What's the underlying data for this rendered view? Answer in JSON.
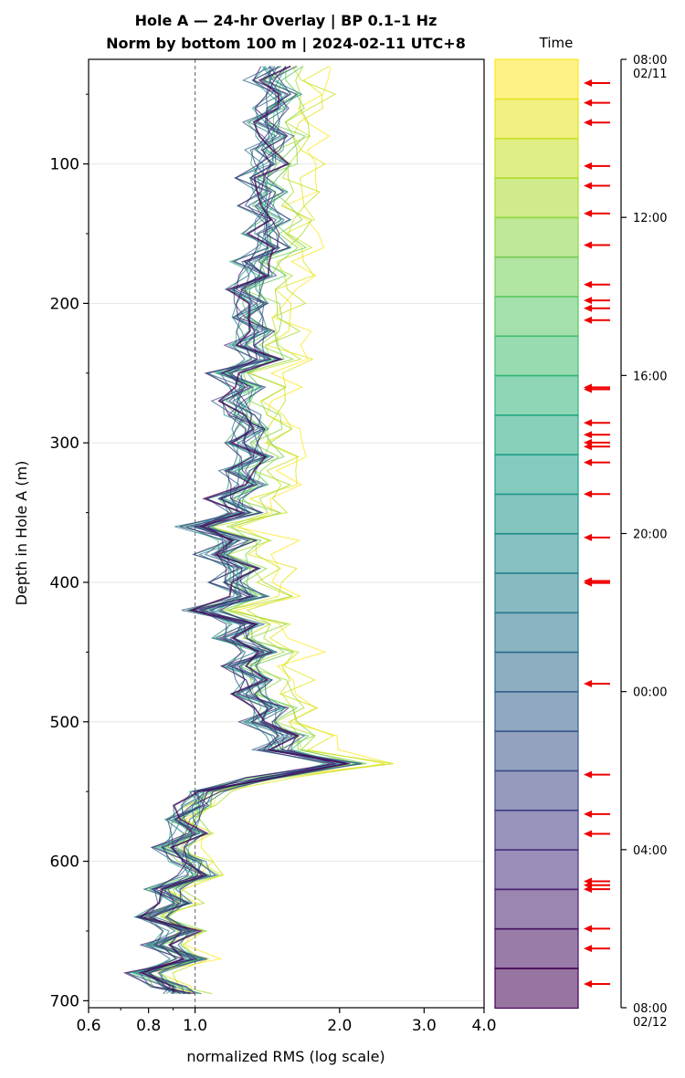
{
  "chart_data": {
    "type": "line",
    "title": "Hole A — 24-hr Overlay  |  BP 0.1–1 Hz",
    "subtitle": "Norm by bottom 100 m  |  2024-02-11 UTC+8",
    "xlabel": "normalized RMS  (log scale)",
    "ylabel": "Depth in Hole A (m)",
    "x_scale": "log",
    "xlim": [
      0.6,
      4.0
    ],
    "ylim": [
      705,
      25
    ],
    "x_ticks": [
      "0.6",
      "0.8",
      "1.0",
      "2.0",
      "3.0",
      "4.0"
    ],
    "y_ticks": [
      "100",
      "200",
      "300",
      "400",
      "500",
      "600",
      "700"
    ],
    "reference_line_x": 1.0,
    "grid": true,
    "depth_profile": [
      [
        30,
        1.48
      ],
      [
        40,
        1.4
      ],
      [
        50,
        1.52
      ],
      [
        60,
        1.45
      ],
      [
        70,
        1.38
      ],
      [
        80,
        1.47
      ],
      [
        90,
        1.4
      ],
      [
        100,
        1.43
      ],
      [
        110,
        1.33
      ],
      [
        120,
        1.42
      ],
      [
        130,
        1.36
      ],
      [
        140,
        1.44
      ],
      [
        150,
        1.38
      ],
      [
        160,
        1.46
      ],
      [
        170,
        1.3
      ],
      [
        180,
        1.37
      ],
      [
        190,
        1.25
      ],
      [
        200,
        1.33
      ],
      [
        210,
        1.27
      ],
      [
        220,
        1.35
      ],
      [
        230,
        1.26
      ],
      [
        240,
        1.4
      ],
      [
        250,
        1.15
      ],
      [
        260,
        1.28
      ],
      [
        270,
        1.2
      ],
      [
        280,
        1.25
      ],
      [
        290,
        1.32
      ],
      [
        300,
        1.24
      ],
      [
        310,
        1.35
      ],
      [
        320,
        1.22
      ],
      [
        330,
        1.3
      ],
      [
        340,
        1.15
      ],
      [
        350,
        1.27
      ],
      [
        360,
        1.0
      ],
      [
        370,
        1.22
      ],
      [
        380,
        1.1
      ],
      [
        390,
        1.25
      ],
      [
        400,
        1.17
      ],
      [
        410,
        1.3
      ],
      [
        420,
        1.03
      ],
      [
        430,
        1.28
      ],
      [
        440,
        1.18
      ],
      [
        450,
        1.38
      ],
      [
        460,
        1.22
      ],
      [
        470,
        1.35
      ],
      [
        480,
        1.28
      ],
      [
        490,
        1.45
      ],
      [
        500,
        1.35
      ],
      [
        510,
        1.55
      ],
      [
        520,
        1.45
      ],
      [
        530,
        2.05
      ],
      [
        540,
        1.4
      ],
      [
        550,
        1.05
      ],
      [
        560,
        1.0
      ],
      [
        570,
        0.93
      ],
      [
        580,
        0.98
      ],
      [
        590,
        0.88
      ],
      [
        600,
        0.97
      ],
      [
        610,
        1.02
      ],
      [
        620,
        0.85
      ],
      [
        630,
        0.92
      ],
      [
        640,
        0.8
      ],
      [
        650,
        0.95
      ],
      [
        660,
        0.84
      ],
      [
        670,
        0.98
      ],
      [
        680,
        0.78
      ],
      [
        690,
        0.88
      ],
      [
        695,
        0.95
      ]
    ],
    "series_count": 24,
    "colorbar": {
      "label": "Time",
      "ticks": [
        "08:00\n02/11",
        "12:00",
        "16:00",
        "20:00",
        "00:00",
        "04:00",
        "08:00\n02/12"
      ],
      "bands": 24,
      "event_arrow_hours": [
        0.6,
        1.1,
        1.6,
        2.7,
        3.2,
        3.9,
        4.7,
        5.7,
        6.1,
        6.3,
        6.6,
        8.3,
        8.35,
        9.2,
        9.5,
        9.7,
        9.8,
        10.2,
        11.0,
        12.1,
        13.2,
        13.25,
        15.8,
        18.1,
        19.1,
        19.6,
        20.8,
        20.9,
        21.0,
        22.0,
        22.5,
        23.4
      ],
      "colors": [
        "#fde725",
        "#d8e219",
        "#addc30",
        "#84d44b",
        "#5ec962",
        "#3fbc73",
        "#28ae80",
        "#1fa088",
        "#21918c",
        "#26828e",
        "#2c728e",
        "#33638d",
        "#3b528b",
        "#424086",
        "#472d7b",
        "#48186a",
        "#440154"
      ]
    }
  }
}
